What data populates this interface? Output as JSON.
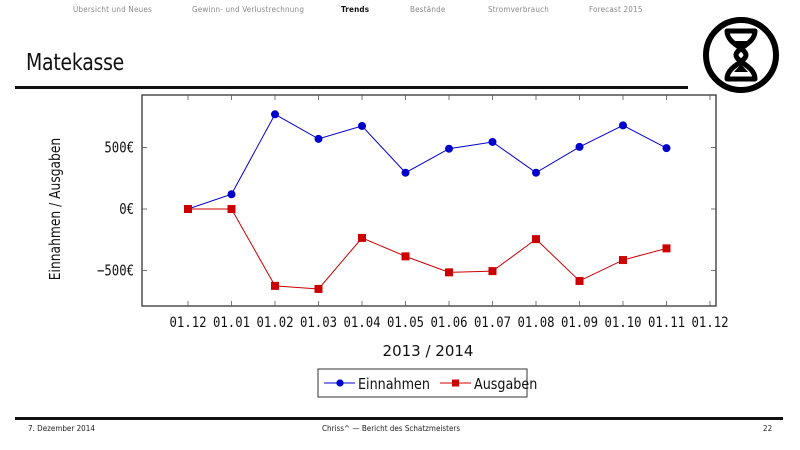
{
  "nav": {
    "items": [
      {
        "label": "Übersicht und Neues",
        "active": false
      },
      {
        "label": "Gewinn- und Verlustrechnung",
        "active": false
      },
      {
        "label": "Trends",
        "active": true
      },
      {
        "label": "Bestände",
        "active": false
      },
      {
        "label": "Stromverbrauch",
        "active": false
      },
      {
        "label": "Forecast 2015",
        "active": false
      }
    ]
  },
  "slide": {
    "title": "Matekasse",
    "logo_icon": "hourglass-in-circle-icon"
  },
  "chart_data": {
    "type": "line",
    "title": "",
    "xlabel": "2013 / 2014",
    "ylabel": "Einnahmen / Ausgaben",
    "categories": [
      "01.12",
      "01.01",
      "01.02",
      "01.03",
      "01.04",
      "01.05",
      "01.06",
      "01.07",
      "01.08",
      "01.09",
      "01.10",
      "01.11",
      "01.12"
    ],
    "yticks": [
      {
        "value": 500,
        "label": "500€"
      },
      {
        "value": 0,
        "label": "0€"
      },
      {
        "value": -500,
        "label": "−500€"
      }
    ],
    "ylim": [
      -800,
      870
    ],
    "grid": false,
    "legend_position": "below",
    "series": [
      {
        "name": "Einnahmen",
        "color": "#0000cc",
        "marker": "circle",
        "values": [
          0,
          120,
          770,
          570,
          675,
          295,
          490,
          545,
          295,
          505,
          680,
          495
        ]
      },
      {
        "name": "Ausgaben",
        "color": "#cc0000",
        "marker": "square",
        "values": [
          0,
          0,
          -625,
          -650,
          -235,
          -385,
          -515,
          -505,
          -245,
          -585,
          -415,
          -320
        ]
      }
    ]
  },
  "footer": {
    "date": "7. Dezember 2014",
    "center": "Chriss^ — Bericht des Schatzmeisters",
    "page": "22"
  }
}
